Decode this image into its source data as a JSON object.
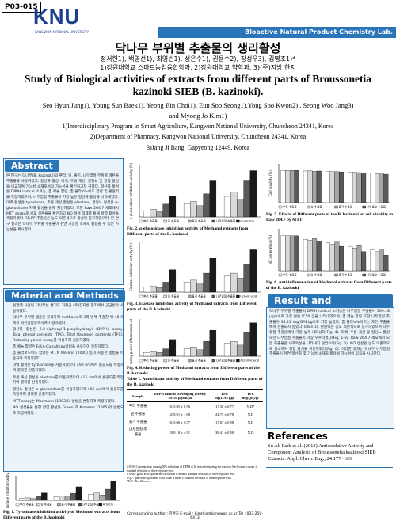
{
  "header": {
    "code": "P03-015",
    "logo": "KNU",
    "logo_sub": "KANGWON NATIONAL UNIVERSITY",
    "lab": "Bioactive Natural Product Chemistry Lab."
  },
  "title": {
    "korean": "닥나무 부위별 추출물의 생리활성",
    "korean_authors": "정서현1), 백영선1), 최영빈1), 성은수1), 권용수2), 장성우3), 김명조1)*",
    "korean_affiliations": "1)강원대학교 스마트농업융합학과, 2)강원대학교 약학과, 3)(주)지방 한지",
    "english": "Study of Biological activities of extracts from different parts of Broussonetia kazinoki SIEB (B. kazinoki).",
    "authors": "Seo Hyun Jung1), Young Sun Baek1), Yeong Bin Choi1), Eun Soo Seong1),Yong Soo Kwon2) , Seong Woo Jang3)",
    "authors_2": "and Myong Jo Kim1)",
    "affiliations": [
      "1)Interdisciplinary Program in Smart Agriculture, Kangwon National University, Chuncheon 24341, Korea",
      "2)Department of Pharmacy, Kangwon National University, Chuncheon 24341, Korea",
      "3)Jang Ji Bang, Gapyeong 12449, Korea"
    ]
  },
  "abstract": {
    "heading": "Abstract",
    "text": "본 연구는 닥나무(B. kazinoki)의 뿌리, 잎, 줄기, 나무껍질 부위별 메탄올 추출물을 사용하였고, 항산화 활성, 미백, 주름 개선, 항당뇨 및 항염 활성을 비교하여 기능성 소재로서의 가능성을 확인하고자 하였다. 항산화 활성은 DPPH radical 소거능, 총 페놀 함량, 총 플라보노이드 함량 및 환원력을 측정하였으며, 나무껍질 추출물이 가장 높은 항산화 활성을 나타내었다. 미백 활성은 tyrosinase, 주름 개선 활성은 elastase, 항당뇨 활성은 α-glucosidase 저해 활성을 통해 확인하였다. 또한 Raw 264.7 세포에서 MTT assay로 세포 생존율을 확인하고 NO 생성 억제를 통해 항염 활성을 측정하였다. 닥나무 추출물은 농도 의존적으로 활성이 증가하였으며, 본 연구 결과는 닥나무 부위별 추출물이 천연 기능성 소재로 활용될 수 있는 가능성을 제시한다."
  },
  "methods": {
    "heading": "Material and Methods",
    "items": [
      "실험에 사용된 닥나무는 경기도 가평군 (주)장지방 한지에서 공급받아 사용하였다.",
      "닥나무 부위별 샘플은 분쇄하여 methanol로 3회 반복 추출한 뒤 45°C에서 회전감압농축하여 사용하였다.",
      "항산화 활성은 2,2-diphenyl-1-picrylhydrazyl (DPPH) assay, Total phenol contents (TPC), Total flavonoid contents (TFC), Reducing power assay를 이용하여 검증하였다.",
      "총 페놀 함량은 Folin-Ciocalteau방법을 사용하여 측정하였다.",
      "총 플라보노이드 함량은 M.I.N Moreno (2000) 등이 사용한 방법을 이용하여 측정하였다.",
      "미백 활성은 tyrosinase를 사용하였으며 490 nm에서 흡광도를 측정하여 결과를 산출하였다.",
      "주름 개선 활성은 elastase를 이용하였으며 415 nm에서 흡광도를 측정하여 결과를 산출하였다.",
      "항당뇨 활성은 α-glucosidase를 이용하였으며 405 nm에서 흡광도를 측정하여 결과를 산출하였다.",
      "MTT assay는 Mosmann (1983)의 방법을 변형하여 측정하였다.",
      "NO 생성율을 통한 항염 활성은 Green 과 Kroemer (2005)의 방법으로 측정하였다."
    ]
  },
  "figures": [
    {
      "caption": "Fig. 1. Tyrosinase inhibition activity of Methanol extracts from Different parts of the B. kazinoki",
      "y_label": "Tyrosinase inhibition activity (%)",
      "ylim": [
        0,
        100
      ],
      "series": [
        {
          "name": "뿌리 추출물",
          "color": "#ffffff",
          "values": [
            8,
            15,
            25
          ]
        },
        {
          "name": "잎 추출물",
          "color": "#d9d9d9",
          "values": [
            10,
            18,
            30
          ]
        },
        {
          "name": "줄기 추출물",
          "color": "#a6a6a6",
          "values": [
            7,
            14,
            22
          ]
        },
        {
          "name": "나무껍질 추출물",
          "color": "#595959",
          "values": [
            15,
            28,
            45
          ]
        },
        {
          "name": "Arbutin",
          "color": "#1a1a1a",
          "values": [
            30,
            55,
            80
          ]
        }
      ]
    },
    {
      "caption": "Fig. 2. α-glucosidase inhibition activity of Methanol extracts from Different parts of the B. kazinoki",
      "y_label": "α-glucosidase inhibition activity (%)",
      "ylim": [
        0,
        100
      ],
      "series": [
        {
          "name": "뿌리 추출물",
          "color": "#ffffff",
          "values": [
            12,
            25,
            40
          ]
        },
        {
          "name": "잎 추출물",
          "color": "#d9d9d9",
          "values": [
            15,
            30,
            48
          ]
        },
        {
          "name": "줄기 추출물",
          "color": "#a6a6a6",
          "values": [
            10,
            22,
            35
          ]
        },
        {
          "name": "나무껍질 추출물",
          "color": "#595959",
          "values": [
            25,
            45,
            70
          ]
        },
        {
          "name": "Quercetin",
          "color": "#1a1a1a",
          "values": [
            40,
            70,
            90
          ]
        }
      ]
    },
    {
      "caption": "Fig. 3. Elastase inhibition activity of Methanol extracts from Different parts of the B. kazinoki",
      "y_label": "Elastase inhibition activity (%)",
      "ylim": [
        0,
        100
      ],
      "series": [
        {
          "name": "뿌리 추출물",
          "color": "#ffffff",
          "values": [
            10,
            20,
            32
          ]
        },
        {
          "name": "잎 추출물",
          "color": "#d9d9d9",
          "values": [
            12,
            24,
            38
          ]
        },
        {
          "name": "줄기 추출물",
          "color": "#a6a6a6",
          "values": [
            9,
            18,
            28
          ]
        },
        {
          "name": "나무껍질 추출물",
          "color": "#595959",
          "values": [
            20,
            38,
            55
          ]
        },
        {
          "name": "Ursolic acid",
          "color": "#1a1a1a",
          "values": [
            45,
            68,
            85
          ]
        }
      ]
    },
    {
      "caption": "Fig. 4. Reducing power of Methanol extracts from Different parts of the B. kazinoki",
      "y_label": "Reducing power (Absorbance at 700nm)",
      "ylim": [
        0,
        2
      ],
      "series": [
        {
          "name": "뿌리 추출물",
          "color": "#ffffff",
          "values": [
            0.2,
            0.4,
            0.7
          ]
        },
        {
          "name": "잎 추출물",
          "color": "#d9d9d9",
          "values": [
            0.25,
            0.5,
            0.8
          ]
        },
        {
          "name": "줄기 추출물",
          "color": "#a6a6a6",
          "values": [
            0.2,
            0.35,
            0.6
          ]
        },
        {
          "name": "나무껍질 추출물",
          "color": "#595959",
          "values": [
            0.4,
            0.8,
            1.3
          ]
        },
        {
          "name": "Ascorbic acid",
          "color": "#1a1a1a",
          "values": [
            0.9,
            1.4,
            1.8
          ]
        }
      ]
    },
    {
      "caption": "Fig. 5. Effects of Different parts of the B. kazinoki on cell viability in Raw 264.7 by MTT",
      "y_label": "Cell viability (%)",
      "ylim": [
        0,
        120
      ],
      "series": [
        {
          "name": "뿌리 추출물",
          "color": "#ffffff",
          "values": [
            100,
            98,
            97,
            95,
            92
          ]
        },
        {
          "name": "잎 추출물",
          "color": "#d9d9d9",
          "values": [
            100,
            99,
            96,
            94,
            90
          ]
        },
        {
          "name": "줄기 추출물",
          "color": "#a6a6a6",
          "values": [
            100,
            97,
            96,
            93,
            91
          ]
        },
        {
          "name": "나무껍질 추출물",
          "color": "#595959",
          "values": [
            100,
            98,
            95,
            92,
            88
          ]
        }
      ]
    },
    {
      "caption": "Fig. 6. Anti-inflammation of Methanol extracts from Different parts of the B. kazinoki",
      "y_label": "NO generation (%)",
      "ylim": [
        0,
        120
      ],
      "series": [
        {
          "name": "뿌리 추출물",
          "color": "#ffffff",
          "values": [
            100,
            90,
            80,
            70,
            60
          ]
        },
        {
          "name": "잎 추출물",
          "color": "#d9d9d9",
          "values": [
            100,
            88,
            76,
            65,
            55
          ]
        },
        {
          "name": "줄기 추출물",
          "color": "#a6a6a6",
          "values": [
            100,
            92,
            82,
            72,
            63
          ]
        },
        {
          "name": "나무껍질 추출물",
          "color": "#595959",
          "values": [
            100,
            85,
            70,
            55,
            45
          ]
        }
      ]
    }
  ],
  "table": {
    "caption": "Table 1. Antioxidant activity of Methanol extracts from Different parts of the B. kazinoki",
    "header": [
      "Sample",
      "DPPH radical scavenging activity (IC50 μg/mL)a",
      "TPC mg(GAE)/gb",
      "TFC mg(QE)/gc"
    ],
    "rows": [
      [
        "뿌리 추출물",
        "633.05 ± 0.56",
        "17.30 ± 0.77",
        "N.D*"
      ],
      [
        "잎 추출물",
        "418.91 ± 1.68",
        "24.75 ± 0.78",
        "N.D"
      ],
      [
        "줄기 추출물",
        "633.06 ± 0.57",
        "17.07 ± 0.58",
        "N.D"
      ],
      [
        "나무껍질 추출물",
        "309.18 ± 4.91",
        "38.41 ± 0.50",
        "N.D"
      ]
    ],
    "notes": [
      "a IC50: Concentration causing 50% inhibition of DPPH at 30 min after starting the reaction. Each value is mean ± standard deviation of three replicate tests.",
      "b GAE : gallic acid equivalent. Each value is mean ± standard deviation of three replicate tests.",
      "c QE : quercetin equivalent. Each value is mean ± standard deviation of three replicate tests.",
      "*N.D : Not Detected."
    ]
  },
  "results": {
    "heading": "Result and Discussion",
    "text": "닥나무 부위별 추출물의 DPPH radical 소거능은 나무껍질 추출물이 309.18 μg/mL로 가장 낮은 IC50 값을 나타내었으며, 총 페놀 함량 또한 나무껍질 추출물이 38.41 mg(GAE)/g으로 가장 높았다. 총 플라보노이드는 모든 추출물에서 검출되지 않았다(Table 1). 환원력은 농도 의존적으로 증가하였으며 나무껍질 추출물에서 가장 높게 나타났다(Fig. 4). 미백, 주름 개선 및 항당뇨 활성 또한 나무껍질 추출물이 가장 우수하였다(Fig. 1-3). Raw 264.7 세포에서 모든 추출물은 세포독성을 나타내지 않았으며(Fig. 5), NO 생성은 농도 의존적으로 감소하여 항염 활성을 확인하였다(Fig. 6). 이러한 결과는 닥나무 나무껍질 추출물이 천연 항산화 및 기능성 소재로 활용될 가능성이 있음을 시사한다."
  },
  "references": {
    "heading": "References",
    "text": "Su Ah Park et al. (2013) Antioxidative Activity and Component Analysis of Broussonetia kazinoki SIEB Extracts. Appl. Chem. Eng., 24:177~183"
  },
  "footer": {
    "contact": "Corresponding author : 김명조 E-mail : kimmjo@kangwon.ac.kr Tel : 033-250-6413"
  }
}
